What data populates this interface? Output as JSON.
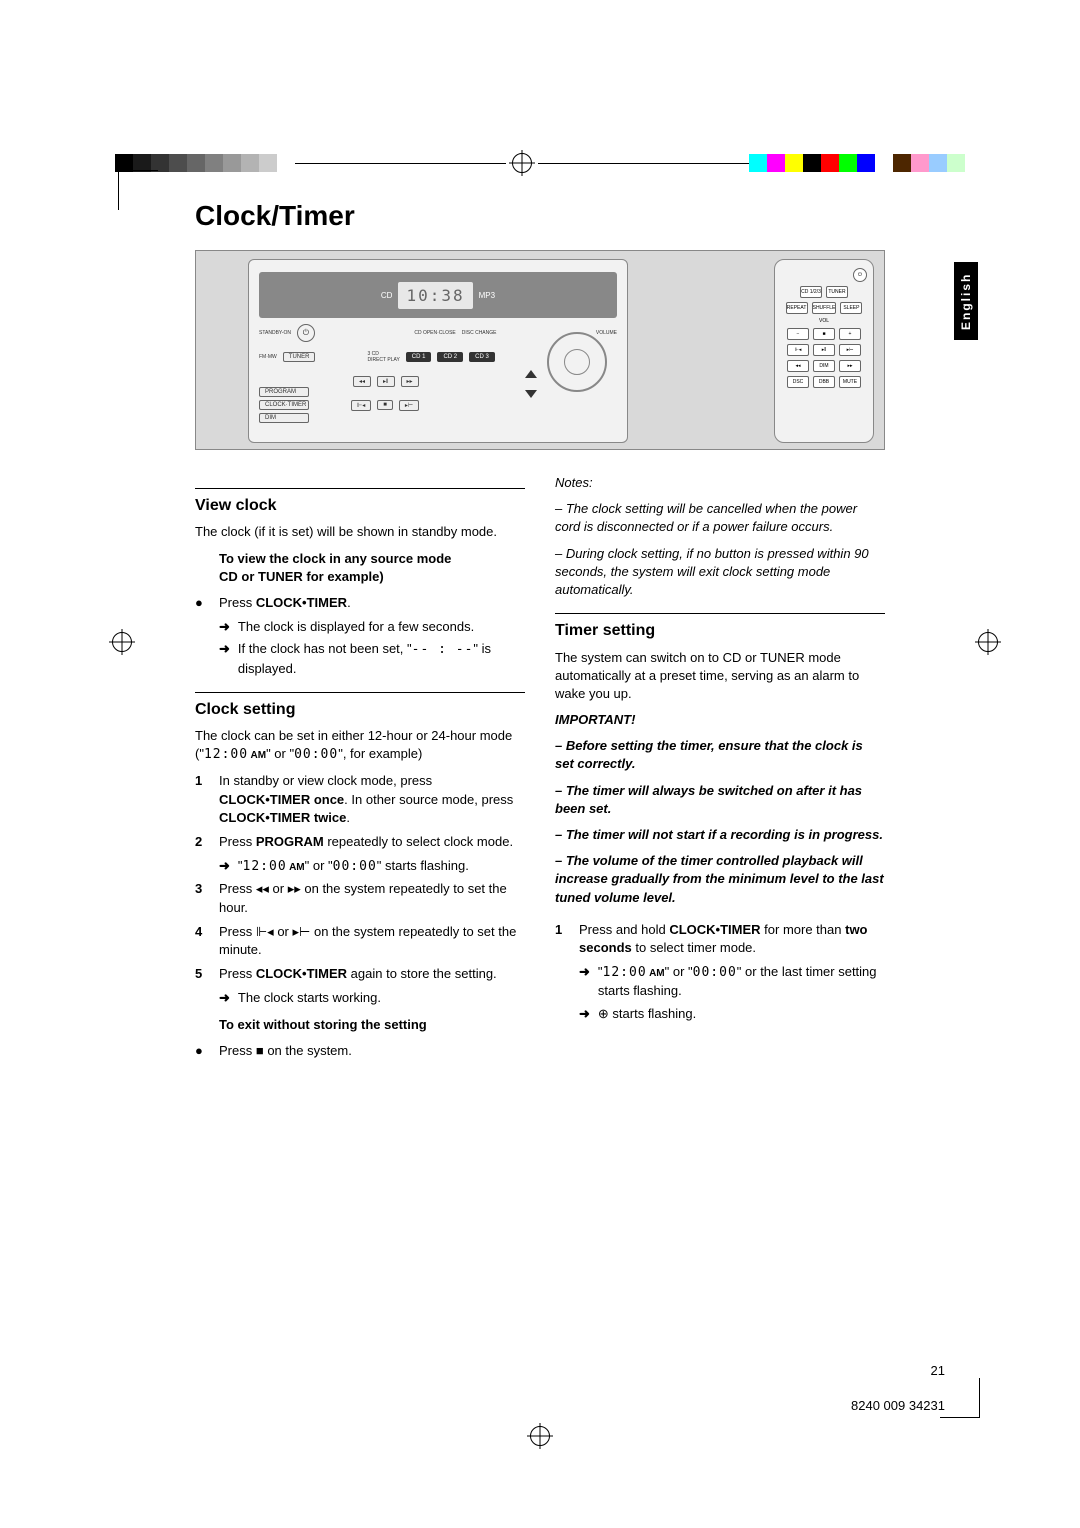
{
  "title": "Clock/Timer",
  "langTab": "English",
  "pageNum": "21",
  "docCode": "8240 009 34231",
  "grayscaleBar": [
    "#000000",
    "#1a1a1a",
    "#333333",
    "#4d4d4d",
    "#666666",
    "#808080",
    "#999999",
    "#b3b3b3",
    "#cccccc",
    "#ffffff"
  ],
  "colorBar": [
    "#00ffff",
    "#ff00ff",
    "#ffff00",
    "#000000",
    "#ff0000",
    "#00ff00",
    "#0000ff",
    "#ffffff",
    "#4d2600",
    "#ff99cc",
    "#99ccff",
    "#ccffcc"
  ],
  "diagram": {
    "display": "10:38",
    "stereoLabels": [
      "STANDBY-ON",
      "CD",
      "FM·MW",
      "TUNER",
      "CD OPEN·CLOSE",
      "DISC CHANGE",
      "CD 1",
      "CD 2",
      "CD 3",
      "VOLUME",
      "PROGRAM",
      "CLOCK·TIMER",
      "DIM"
    ],
    "remoteLabels": [
      "CD 1/2/3",
      "TUNER",
      "REPEAT",
      "SHUFFLE",
      "SLEEP",
      "VOL",
      "DIM",
      "DSC",
      "DBB",
      "MUTE"
    ]
  },
  "left": {
    "sec1": {
      "head": "View clock",
      "p1": "The clock (if it is set) will be shown in standby mode.",
      "sub1a": "To view the clock in any source mode",
      "sub1b": "CD or TUNER for example)",
      "b1_pre": "Press ",
      "b1_bold": "CLOCK•TIMER",
      "b1_post": ".",
      "a1": "The clock is displayed for a few seconds.",
      "a2_pre": "If the clock has not been set, \"",
      "a2_seg": "-- : --",
      "a2_post": "\" is displayed."
    },
    "sec2": {
      "head": "Clock setting",
      "p1_pre": "The clock can be set in either 12-hour or 24-hour mode (\"",
      "p1_seg1": "12:00",
      "p1_am": " AM",
      "p1_mid": "\" or \"",
      "p1_seg2": "00:00",
      "p1_post": "\", for example)",
      "s1_pre": "In standby or view clock mode, press ",
      "s1_b1": "CLOCK•TIMER once",
      "s1_mid": ". In other source mode, press ",
      "s1_b2": "CLOCK•TIMER twice",
      "s1_post": ".",
      "s2_pre": "Press ",
      "s2_b": "PROGRAM",
      "s2_post": " repeatedly to select clock mode.",
      "s2a_pre": "\"",
      "s2a_seg1": "12:00",
      "s2a_am": " AM",
      "s2a_mid": "\" or \"",
      "s2a_seg2": "00:00",
      "s2a_post": "\" starts flashing.",
      "s3_pre": "Press ",
      "s3_mid": " or ",
      "s3_post": " on the system repeatedly to set the hour.",
      "s4_pre": "Press ",
      "s4_mid": " or ",
      "s4_post": " on the system repeatedly to set the minute.",
      "s5_pre": "Press ",
      "s5_b": "CLOCK•TIMER",
      "s5_post": " again to store the setting.",
      "s5a": "The clock starts working.",
      "exit_head": "To exit without storing the setting",
      "exit_pre": "Press ",
      "exit_post": " on the system."
    }
  },
  "right": {
    "notes_head": "Notes:",
    "n1": "The clock setting will be cancelled when the power cord is disconnected or if a power failure occurs.",
    "n2": "During clock setting, if no button is pressed within 90 seconds, the system will exit clock setting mode automatically.",
    "sec3": {
      "head": "Timer setting",
      "p1": "The system can switch on to CD or TUNER mode automatically at a preset time, serving as an alarm to wake you up.",
      "imp": "IMPORTANT!",
      "i1": "Before setting the timer, ensure that the clock is set correctly.",
      "i2": "The timer will always be switched on after it has been set.",
      "i3": "The timer will not start if a recording is in progress.",
      "i4": "The volume of the timer controlled playback will increase gradually from the minimum level to the last tuned volume level.",
      "s1_pre": "Press and hold ",
      "s1_b1": "CLOCK•TIMER",
      "s1_mid": " for more than ",
      "s1_b2": "two seconds",
      "s1_post": " to select timer mode.",
      "s1a_pre": "\"",
      "s1a_seg1": "12:00",
      "s1a_am": " AM",
      "s1a_mid": "\" or \"",
      "s1a_seg2": "00:00",
      "s1a_post": "\" or the last timer setting starts flashing.",
      "s1b_post": " starts flashing."
    }
  }
}
